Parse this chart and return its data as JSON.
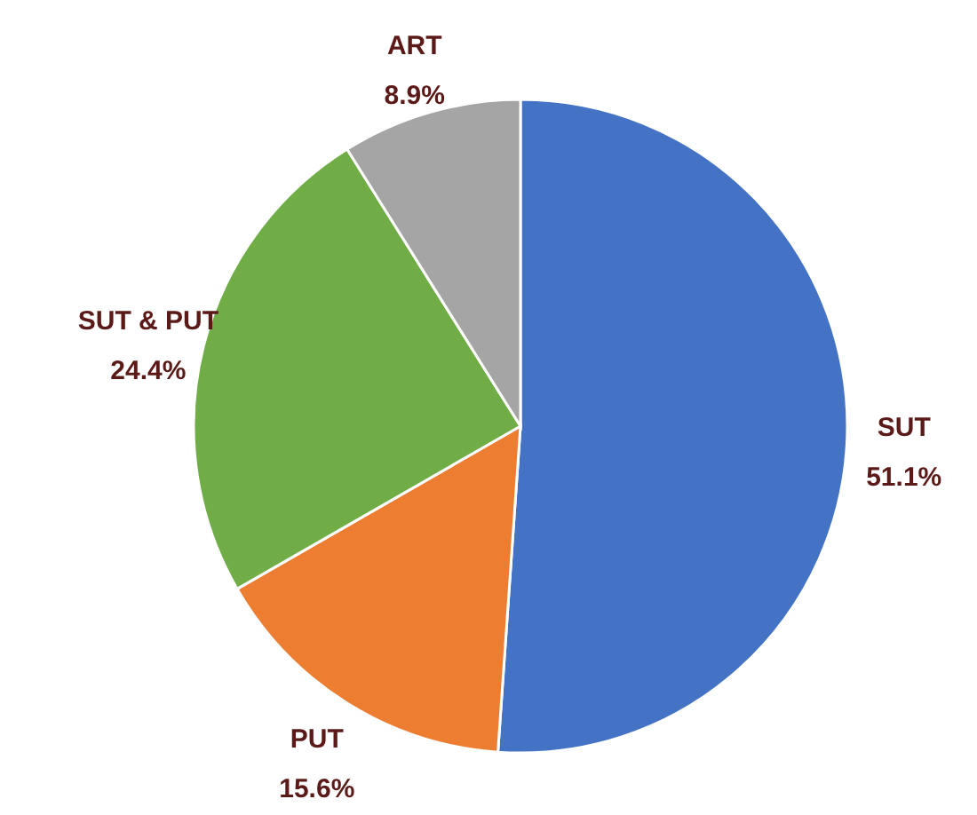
{
  "chart_data": {
    "type": "pie",
    "categories": [
      "SUT",
      "PUT",
      "SUT & PUT",
      "ART"
    ],
    "values": [
      51.1,
      15.6,
      24.4,
      8.9
    ],
    "colors": [
      "#4472c4",
      "#ed7d31",
      "#70ad47",
      "#a5a5a5"
    ],
    "value_labels": [
      "51.1%",
      "15.6%",
      "24.4%",
      "8.9%"
    ]
  }
}
